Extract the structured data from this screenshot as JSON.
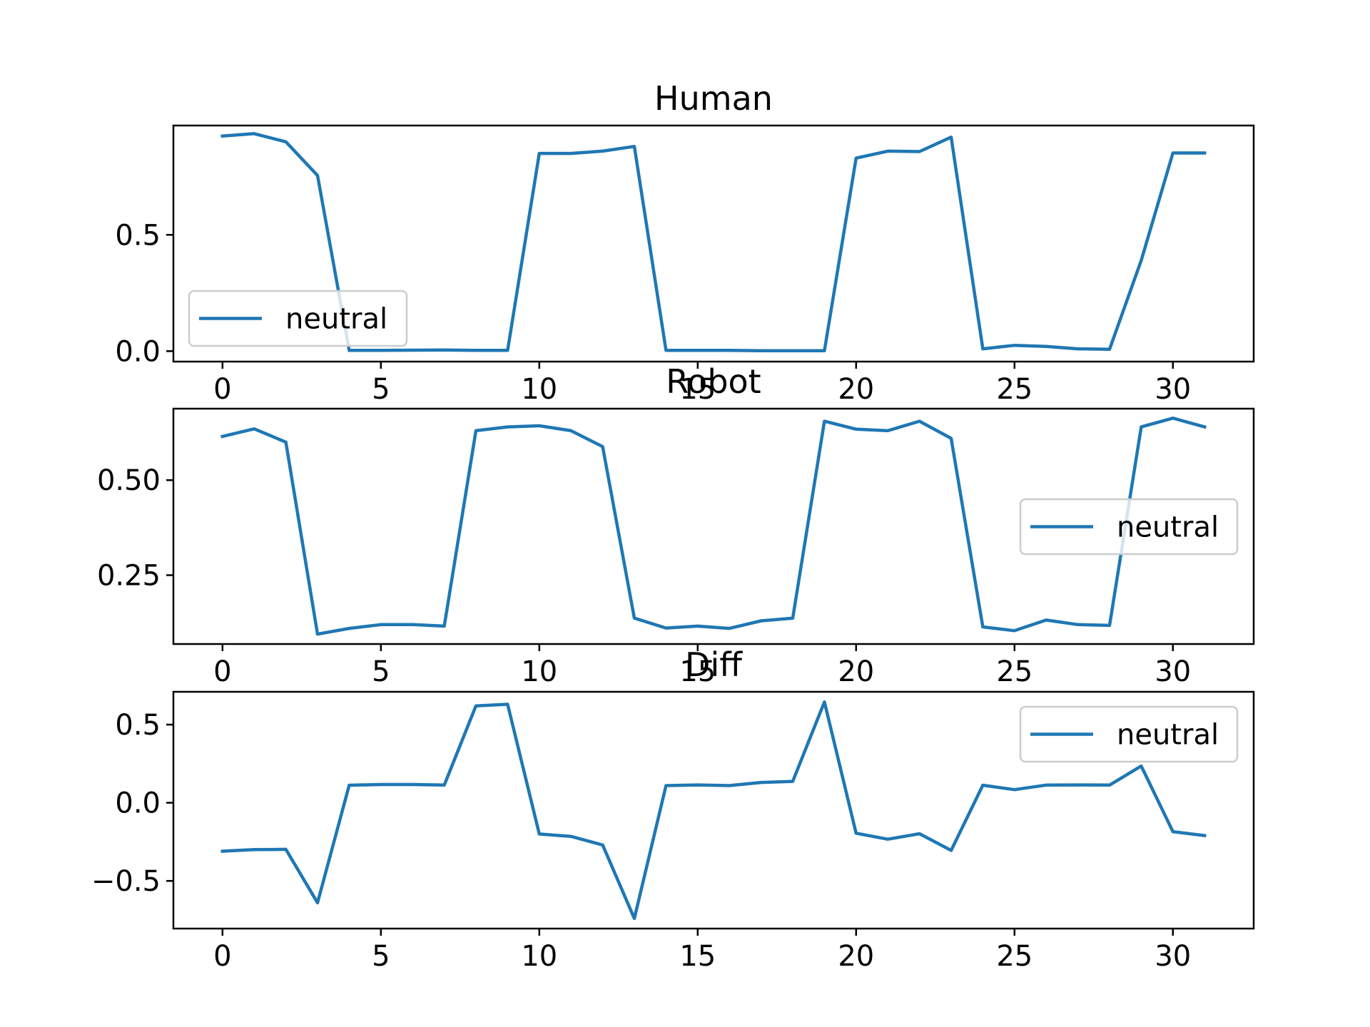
{
  "chart_data": [
    {
      "type": "line",
      "title": "Human",
      "xlabel": "",
      "ylabel": "",
      "xlim": [
        -1.55,
        32.55
      ],
      "ylim": [
        -0.045,
        0.97
      ],
      "xticks": [
        0,
        5,
        10,
        15,
        20,
        25,
        30
      ],
      "xtick_labels": [
        "0",
        "5",
        "10",
        "15",
        "20",
        "25",
        "30"
      ],
      "yticks": [
        0.0,
        0.5
      ],
      "ytick_labels": [
        "0.0",
        "0.5"
      ],
      "grid": false,
      "legend": "lower-left",
      "series": [
        {
          "name": "neutral",
          "color": "#1f77b4",
          "x": [
            0,
            1,
            2,
            3,
            4,
            5,
            6,
            7,
            8,
            9,
            10,
            11,
            12,
            13,
            14,
            15,
            16,
            17,
            18,
            19,
            20,
            21,
            22,
            23,
            24,
            25,
            26,
            27,
            28,
            29,
            30,
            31
          ],
          "values": [
            0.925,
            0.935,
            0.9,
            0.755,
            0.003,
            0.003,
            0.004,
            0.005,
            0.003,
            0.003,
            0.85,
            0.85,
            0.86,
            0.88,
            0.003,
            0.003,
            0.003,
            0.002,
            0.002,
            0.002,
            0.83,
            0.86,
            0.858,
            0.92,
            0.01,
            0.025,
            0.02,
            0.01,
            0.008,
            0.39,
            0.852,
            0.852
          ]
        }
      ]
    },
    {
      "type": "line",
      "title": "Robot",
      "xlabel": "",
      "ylabel": "",
      "xlim": [
        -1.55,
        32.55
      ],
      "ylim": [
        0.069,
        0.688
      ],
      "xticks": [
        0,
        5,
        10,
        15,
        20,
        25,
        30
      ],
      "xtick_labels": [
        "0",
        "5",
        "10",
        "15",
        "20",
        "25",
        "30"
      ],
      "yticks": [
        0.25,
        0.5
      ],
      "ytick_labels": [
        "0.25",
        "0.50"
      ],
      "grid": false,
      "legend": "center-right",
      "series": [
        {
          "name": "neutral",
          "color": "#1f77b4",
          "x": [
            0,
            1,
            2,
            3,
            4,
            5,
            6,
            7,
            8,
            9,
            10,
            11,
            12,
            13,
            14,
            15,
            16,
            17,
            18,
            19,
            20,
            21,
            22,
            23,
            24,
            25,
            26,
            27,
            28,
            29,
            30,
            31
          ],
          "values": [
            0.615,
            0.635,
            0.6,
            0.095,
            0.11,
            0.12,
            0.12,
            0.116,
            0.63,
            0.64,
            0.643,
            0.63,
            0.588,
            0.137,
            0.111,
            0.116,
            0.11,
            0.13,
            0.137,
            0.655,
            0.634,
            0.63,
            0.655,
            0.61,
            0.114,
            0.104,
            0.132,
            0.12,
            0.118,
            0.64,
            0.663,
            0.64
          ]
        }
      ]
    },
    {
      "type": "line",
      "title": "Diff",
      "xlabel": "",
      "ylabel": "",
      "xlim": [
        -1.55,
        32.55
      ],
      "ylim": [
        -0.805,
        0.71
      ],
      "xticks": [
        0,
        5,
        10,
        15,
        20,
        25,
        30
      ],
      "xtick_labels": [
        "0",
        "5",
        "10",
        "15",
        "20",
        "25",
        "30"
      ],
      "yticks": [
        -0.5,
        0.0,
        0.5
      ],
      "ytick_labels": [
        "−0.5",
        "0.0",
        "0.5"
      ],
      "grid": false,
      "legend": "upper-right",
      "series": [
        {
          "name": "neutral",
          "color": "#1f77b4",
          "x": [
            0,
            1,
            2,
            3,
            4,
            5,
            6,
            7,
            8,
            9,
            10,
            11,
            12,
            13,
            14,
            15,
            16,
            17,
            18,
            19,
            20,
            21,
            22,
            23,
            24,
            25,
            26,
            27,
            28,
            29,
            30,
            31
          ],
          "values": [
            -0.31,
            -0.3,
            -0.298,
            -0.64,
            0.112,
            0.117,
            0.117,
            0.113,
            0.62,
            0.63,
            -0.2,
            -0.215,
            -0.27,
            -0.74,
            0.11,
            0.114,
            0.11,
            0.13,
            0.137,
            0.645,
            -0.195,
            -0.233,
            -0.198,
            -0.305,
            0.112,
            0.084,
            0.113,
            0.114,
            0.113,
            0.235,
            -0.185,
            -0.21
          ]
        }
      ]
    }
  ]
}
